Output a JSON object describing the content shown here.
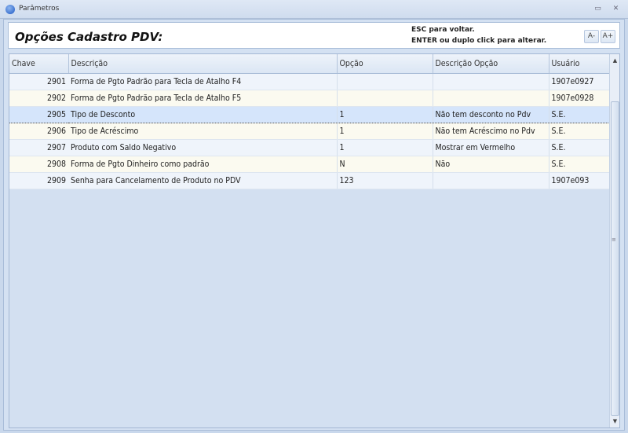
{
  "window": {
    "title": "Parâmetros"
  },
  "header": {
    "title": "Opções Cadastro PDV:",
    "hint1": "ESC para voltar.",
    "hint2": "ENTER ou duplo click para alterar.",
    "font_smaller": "A-",
    "font_larger": "A+"
  },
  "grid": {
    "columns": [
      "Chave",
      "Descrição",
      "Opção",
      "Descrição Opção",
      "Usuário"
    ],
    "rows": [
      [
        "2901",
        "Forma de Pgto Padrão para Tecla de Atalho F4",
        "",
        "",
        "1907e0927"
      ],
      [
        "2902",
        "Forma de Pgto Padrão para Tecla de Atalho F5",
        "",
        "",
        "1907e0928"
      ],
      [
        "2905",
        "Tipo de Desconto",
        "1",
        "Não tem desconto no Pdv",
        "S.E."
      ],
      [
        "2906",
        "Tipo de Acréscimo",
        "1",
        "Não tem Acréscimo no Pdv",
        "S.E."
      ],
      [
        "2907",
        "Produto com Saldo Negativo",
        "1",
        "Mostrar em Vermelho",
        "S.E."
      ],
      [
        "2908",
        "Forma de Pgto Dinheiro como padrão",
        "N",
        "Não",
        "S.E."
      ],
      [
        "2909",
        "Senha para Cancelamento de Produto no PDV",
        "123",
        "",
        "1907e093"
      ]
    ],
    "selected_row": 2
  }
}
